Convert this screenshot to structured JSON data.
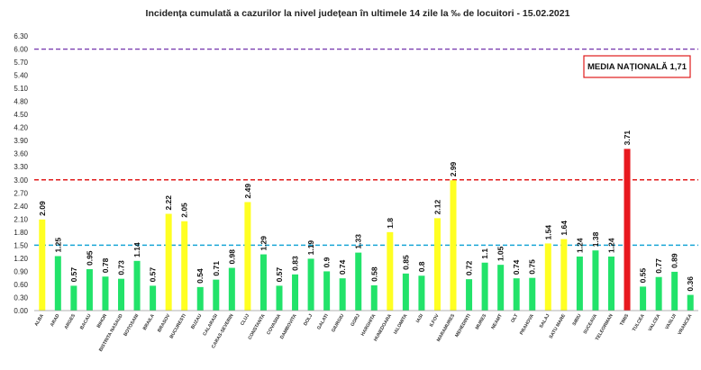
{
  "chart_data": {
    "type": "bar",
    "title": "Incidența cumulată a cazurilor la nivel județean în ultimele 14 zile la ‰ de locuitori - 15.02.2021",
    "ylim": [
      0,
      6.3
    ],
    "yticks": [
      "0.00",
      "0.30",
      "0.60",
      "0.90",
      "1.20",
      "1.50",
      "1.80",
      "2.10",
      "2.40",
      "2.70",
      "3.00",
      "3.30",
      "3.60",
      "3.90",
      "4.20",
      "4.50",
      "4.80",
      "5.10",
      "5.40",
      "5.70",
      "6.00",
      "6.30"
    ],
    "grid": false,
    "categories": [
      "ALBA",
      "ARAD",
      "ARGES",
      "BACAU",
      "BIHOR",
      "BISTRITA NASAUD",
      "BOTOSANI",
      "BRAILA",
      "BRASOV",
      "BUCURESTI",
      "BUZAU",
      "CALARASI",
      "CARAS-SEVERIN",
      "CLUJ",
      "CONSTANTA",
      "COVASNA",
      "DAMBOVITA",
      "DOLJ",
      "GALATI",
      "GIURGIU",
      "GORJ",
      "HARGHITA",
      "HUNEDOARA",
      "IALOMITA",
      "IASI",
      "ILFOV",
      "MARAMURES",
      "MEHEDINTI",
      "MURES",
      "NEAMT",
      "OLT",
      "PRAHOVA",
      "SALAJ",
      "SATU MARE",
      "SIBIU",
      "SUCEAVA",
      "TELEORMAN",
      "TIMIS",
      "TULCEA",
      "VALCEA",
      "VASLUI",
      "VRANCEA"
    ],
    "values": [
      2.09,
      1.25,
      0.57,
      0.95,
      0.78,
      0.73,
      1.14,
      0.57,
      2.22,
      2.05,
      0.54,
      0.71,
      0.98,
      2.49,
      1.29,
      0.57,
      0.83,
      1.19,
      0.9,
      0.74,
      1.33,
      0.58,
      1.8,
      0.85,
      0.8,
      2.12,
      2.99,
      0.72,
      1.1,
      1.05,
      0.74,
      0.75,
      1.54,
      1.64,
      1.24,
      1.38,
      1.24,
      3.71,
      0.55,
      0.77,
      0.89,
      0.36
    ],
    "data_labels": [
      "2.09",
      "1.25",
      "0.57",
      "0.95",
      "0.78",
      "0.73",
      "1.14",
      "0.57",
      "2.22",
      "2.05",
      "0.54",
      "0.71",
      "0.98",
      "2.49",
      "1.29",
      "0.57",
      "0.83",
      "1.19",
      "0.9",
      "0.74",
      "1.33",
      "0.58",
      "1.8",
      "0.85",
      "0.8",
      "2.12",
      "2.99",
      "0.72",
      "1.1",
      "1.05",
      "0.74",
      "0.75",
      "1.54",
      "1.64",
      "1.24",
      "1.38",
      "1.24",
      "3.71",
      "0.55",
      "0.77",
      "0.89",
      "0.36"
    ],
    "colors": {
      "below_1_5": "#22e36a",
      "between_1_5_and_3": "#ffff22",
      "above_3": "#e8191f"
    },
    "reference_lines": [
      {
        "value": 6.0,
        "color": "#7b3fb0"
      },
      {
        "value": 3.0,
        "color": "#e01b1b"
      },
      {
        "value": 1.5,
        "color": "#1aa6d6"
      }
    ],
    "annotation": {
      "text": "MEDIA NAȚIONALĂ  1,71",
      "border_color": "#e01b1b"
    }
  }
}
